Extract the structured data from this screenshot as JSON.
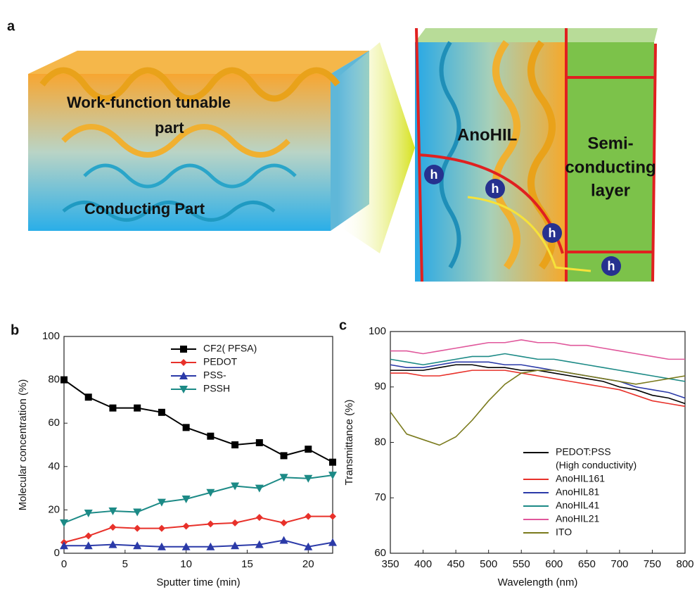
{
  "figure": {
    "panel_label": "a",
    "work_function_label": [
      "Work-function tunable",
      "part"
    ],
    "conducting_label": "Conducting Part",
    "anohil_label": "AnoHIL",
    "semiconducting_label": [
      "Semi-",
      "conducting",
      "layer"
    ],
    "hole_labels": [
      "h",
      "h",
      "h",
      "h"
    ]
  },
  "chart_data": [
    {
      "type": "line",
      "panel_label": "b",
      "x_label": "Sputter time (min)",
      "y_label": "Molecular concentration (%)",
      "x": [
        0,
        2,
        4,
        6,
        8,
        10,
        12,
        14,
        16,
        18,
        20,
        22
      ],
      "series": [
        {
          "name": "CF2( PFSA)",
          "color": "#000000",
          "marker": "square",
          "values": [
            80,
            72,
            67,
            67,
            65,
            58,
            54,
            50,
            51,
            45,
            48,
            42
          ]
        },
        {
          "name": "PEDOT",
          "color": "#e8312a",
          "marker": "circle",
          "values": [
            5,
            8,
            12,
            11.5,
            11.5,
            12.5,
            13.5,
            14,
            16.5,
            14,
            17,
            17
          ]
        },
        {
          "name": "PSS-",
          "color": "#2b3aa8",
          "marker": "triangle-up",
          "values": [
            3.5,
            3.5,
            4,
            3.5,
            3,
            3,
            3,
            3.5,
            4,
            6,
            3,
            5
          ]
        },
        {
          "name": "PSSH",
          "color": "#1c8a86",
          "marker": "triangle-down",
          "values": [
            14,
            18.5,
            19.5,
            19,
            23.5,
            25,
            28,
            31,
            30,
            35,
            34.5,
            36
          ]
        }
      ],
      "xlim": [
        0,
        22
      ],
      "xticks": [
        0,
        5,
        10,
        15,
        20
      ],
      "ylim": [
        0,
        100
      ],
      "yticks": [
        0,
        20,
        40,
        60,
        80,
        100
      ],
      "legend": "upper right"
    },
    {
      "type": "line",
      "panel_label": "c",
      "x_label": "Wavelength (nm)",
      "y_label": "Transmittance (%)",
      "x": [
        350,
        375,
        400,
        425,
        450,
        475,
        500,
        525,
        550,
        575,
        600,
        625,
        650,
        675,
        700,
        725,
        750,
        775,
        800
      ],
      "series": [
        {
          "name": "PEDOT:PSS",
          "subname": "(High conductivity)",
          "color": "#000000",
          "values": [
            93,
            93,
            93,
            93.5,
            94,
            94,
            93.5,
            93.5,
            93,
            93,
            92.5,
            92,
            91.5,
            91,
            90,
            89.5,
            88.5,
            88,
            87
          ]
        },
        {
          "name": "AnoHIL161",
          "color": "#e8312a",
          "values": [
            92.5,
            92.5,
            92,
            92,
            92.5,
            93,
            93,
            93,
            92.5,
            92,
            91.5,
            91,
            90.5,
            90,
            89.5,
            88.5,
            87.5,
            87,
            86.5
          ]
        },
        {
          "name": "AnoHIL81",
          "color": "#2b3aa8",
          "values": [
            94,
            93.5,
            93.5,
            94,
            94.5,
            94.5,
            94.5,
            94,
            94,
            93.5,
            93,
            92.5,
            92,
            91.5,
            91,
            90,
            89.5,
            89,
            88
          ]
        },
        {
          "name": "AnoHIL41",
          "color": "#1c8a86",
          "values": [
            95,
            94.5,
            94,
            94.5,
            95,
            95.5,
            95.5,
            96,
            95.5,
            95,
            95,
            94.5,
            94,
            93.5,
            93,
            92.5,
            92,
            91.5,
            91
          ]
        },
        {
          "name": "AnoHIL21",
          "color": "#e0579b",
          "values": [
            96.5,
            96.5,
            96,
            96.5,
            97,
            97.5,
            98,
            98,
            98.5,
            98,
            98,
            97.5,
            97.5,
            97,
            96.5,
            96,
            95.5,
            95,
            95
          ]
        },
        {
          "name": "ITO",
          "color": "#7a7a1c",
          "values": [
            85.5,
            81.5,
            80.5,
            79.5,
            81,
            84,
            87.5,
            90.5,
            92.5,
            93,
            93,
            92.5,
            92,
            91.5,
            91,
            90.5,
            91,
            91.5,
            92
          ]
        }
      ],
      "xlim": [
        350,
        800
      ],
      "xticks": [
        350,
        400,
        450,
        500,
        550,
        600,
        650,
        700,
        750,
        800
      ],
      "ylim": [
        60,
        100
      ],
      "yticks": [
        60,
        70,
        80,
        90,
        100
      ],
      "legend": "lower right"
    }
  ]
}
